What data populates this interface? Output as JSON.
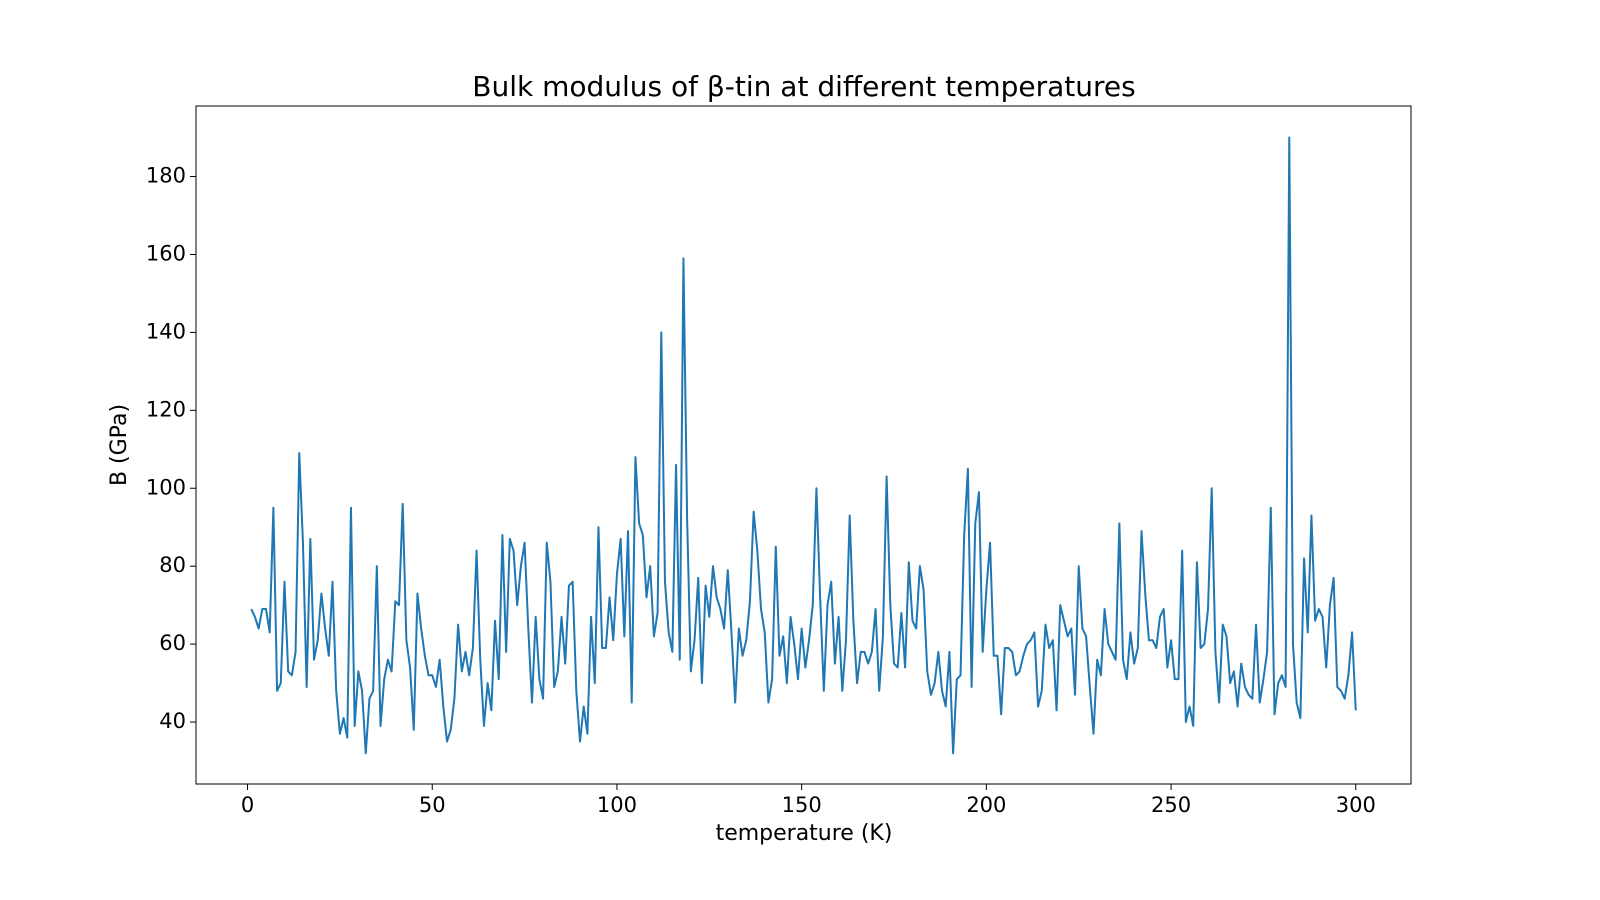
{
  "chart_data": {
    "type": "line",
    "title": "Bulk modulus of β-tin at different temperatures",
    "xlabel": "temperature (K)",
    "ylabel": "B (GPa)",
    "color": "#1f77b4",
    "grid": false,
    "xlim": [
      -13.95,
      314.95
    ],
    "ylim": [
      24.1,
      198.1
    ],
    "xticks": [
      0,
      50,
      100,
      150,
      200,
      250,
      300
    ],
    "yticks": [
      40,
      60,
      80,
      100,
      120,
      140,
      160,
      180
    ],
    "x": [
      1,
      2,
      3,
      4,
      5,
      6,
      7,
      8,
      9,
      10,
      11,
      12,
      13,
      14,
      15,
      16,
      17,
      18,
      19,
      20,
      21,
      22,
      23,
      24,
      25,
      26,
      27,
      28,
      29,
      30,
      31,
      32,
      33,
      34,
      35,
      36,
      37,
      38,
      39,
      40,
      41,
      42,
      43,
      44,
      45,
      46,
      47,
      48,
      49,
      50,
      51,
      52,
      53,
      54,
      55,
      56,
      57,
      58,
      59,
      60,
      61,
      62,
      63,
      64,
      65,
      66,
      67,
      68,
      69,
      70,
      71,
      72,
      73,
      74,
      75,
      76,
      77,
      78,
      79,
      80,
      81,
      82,
      83,
      84,
      85,
      86,
      87,
      88,
      89,
      90,
      91,
      92,
      93,
      94,
      95,
      96,
      97,
      98,
      99,
      100,
      101,
      102,
      103,
      104,
      105,
      106,
      107,
      108,
      109,
      110,
      111,
      112,
      113,
      114,
      115,
      116,
      117,
      118,
      119,
      120,
      121,
      122,
      123,
      124,
      125,
      126,
      127,
      128,
      129,
      130,
      131,
      132,
      133,
      134,
      135,
      136,
      137,
      138,
      139,
      140,
      141,
      142,
      143,
      144,
      145,
      146,
      147,
      148,
      149,
      150,
      151,
      152,
      153,
      154,
      155,
      156,
      157,
      158,
      159,
      160,
      161,
      162,
      163,
      164,
      165,
      166,
      167,
      168,
      169,
      170,
      171,
      172,
      173,
      174,
      175,
      176,
      177,
      178,
      179,
      180,
      181,
      182,
      183,
      184,
      185,
      186,
      187,
      188,
      189,
      190,
      191,
      192,
      193,
      194,
      195,
      196,
      197,
      198,
      199,
      200,
      201,
      202,
      203,
      204,
      205,
      206,
      207,
      208,
      209,
      210,
      211,
      212,
      213,
      214,
      215,
      216,
      217,
      218,
      219,
      220,
      221,
      222,
      223,
      224,
      225,
      226,
      227,
      228,
      229,
      230,
      231,
      232,
      233,
      234,
      235,
      236,
      237,
      238,
      239,
      240,
      241,
      242,
      243,
      244,
      245,
      246,
      247,
      248,
      249,
      250,
      251,
      252,
      253,
      254,
      255,
      256,
      257,
      258,
      259,
      260,
      261,
      262,
      263,
      264,
      265,
      266,
      267,
      268,
      269,
      270,
      271,
      272,
      273,
      274,
      275,
      276,
      277,
      278,
      279,
      280,
      281,
      282,
      283,
      284,
      285,
      286,
      287,
      288,
      289,
      290,
      291,
      292,
      293,
      294,
      295,
      296,
      297,
      298,
      299,
      300
    ],
    "values": [
      69,
      67,
      64,
      69,
      69,
      63,
      95,
      48,
      50,
      76,
      53,
      52,
      58,
      109,
      86,
      49,
      87,
      56,
      61,
      73,
      64,
      57,
      76,
      48,
      37,
      41,
      36,
      95,
      39,
      53,
      48,
      32,
      46,
      48,
      80,
      39,
      51,
      56,
      53,
      71,
      70,
      96,
      61,
      54,
      38,
      73,
      64,
      57,
      52,
      52,
      49,
      56,
      44,
      35,
      38,
      46,
      65,
      53,
      58,
      52,
      59,
      84,
      56,
      39,
      50,
      43,
      66,
      51,
      88,
      58,
      87,
      84,
      70,
      80,
      86,
      64,
      45,
      67,
      51,
      46,
      86,
      76,
      49,
      53,
      67,
      55,
      75,
      76,
      48,
      35,
      44,
      37,
      67,
      50,
      90,
      59,
      59,
      72,
      61,
      78,
      87,
      62,
      89,
      45,
      108,
      91,
      88,
      72,
      80,
      62,
      68,
      140,
      76,
      63,
      58,
      106,
      56,
      159,
      92,
      53,
      61,
      77,
      50,
      75,
      67,
      80,
      72,
      69,
      64,
      79,
      63,
      45,
      64,
      57,
      61,
      71,
      94,
      84,
      69,
      63,
      45,
      51,
      85,
      57,
      62,
      50,
      67,
      60,
      51,
      64,
      54,
      61,
      70,
      100,
      72,
      48,
      70,
      76,
      55,
      67,
      48,
      61,
      93,
      66,
      50,
      58,
      58,
      55,
      58,
      69,
      48,
      62,
      103,
      70,
      55,
      54,
      68,
      54,
      81,
      66,
      64,
      80,
      74,
      53,
      47,
      50,
      58,
      48,
      44,
      58,
      32,
      51,
      52,
      88,
      105,
      49,
      91,
      99,
      58,
      74,
      86,
      57,
      57,
      42,
      59,
      59,
      58,
      52,
      53,
      57,
      60,
      61,
      63,
      44,
      48,
      65,
      59,
      61,
      43,
      70,
      66,
      62,
      64,
      47,
      80,
      64,
      62,
      49,
      37,
      56,
      52,
      69,
      60,
      58,
      56,
      91,
      56,
      51,
      63,
      55,
      59,
      89,
      73,
      61,
      61,
      59,
      67,
      69,
      54,
      61,
      51,
      51,
      84,
      40,
      44,
      39,
      81,
      59,
      60,
      69,
      100,
      58,
      45,
      65,
      62,
      50,
      53,
      44,
      55,
      49,
      47,
      46,
      65,
      45,
      51,
      58,
      95,
      42,
      50,
      52,
      49,
      190,
      60,
      45,
      41,
      82,
      63,
      93,
      66,
      69,
      67,
      54,
      70,
      77,
      49,
      48,
      46,
      52,
      63,
      43
    ]
  }
}
